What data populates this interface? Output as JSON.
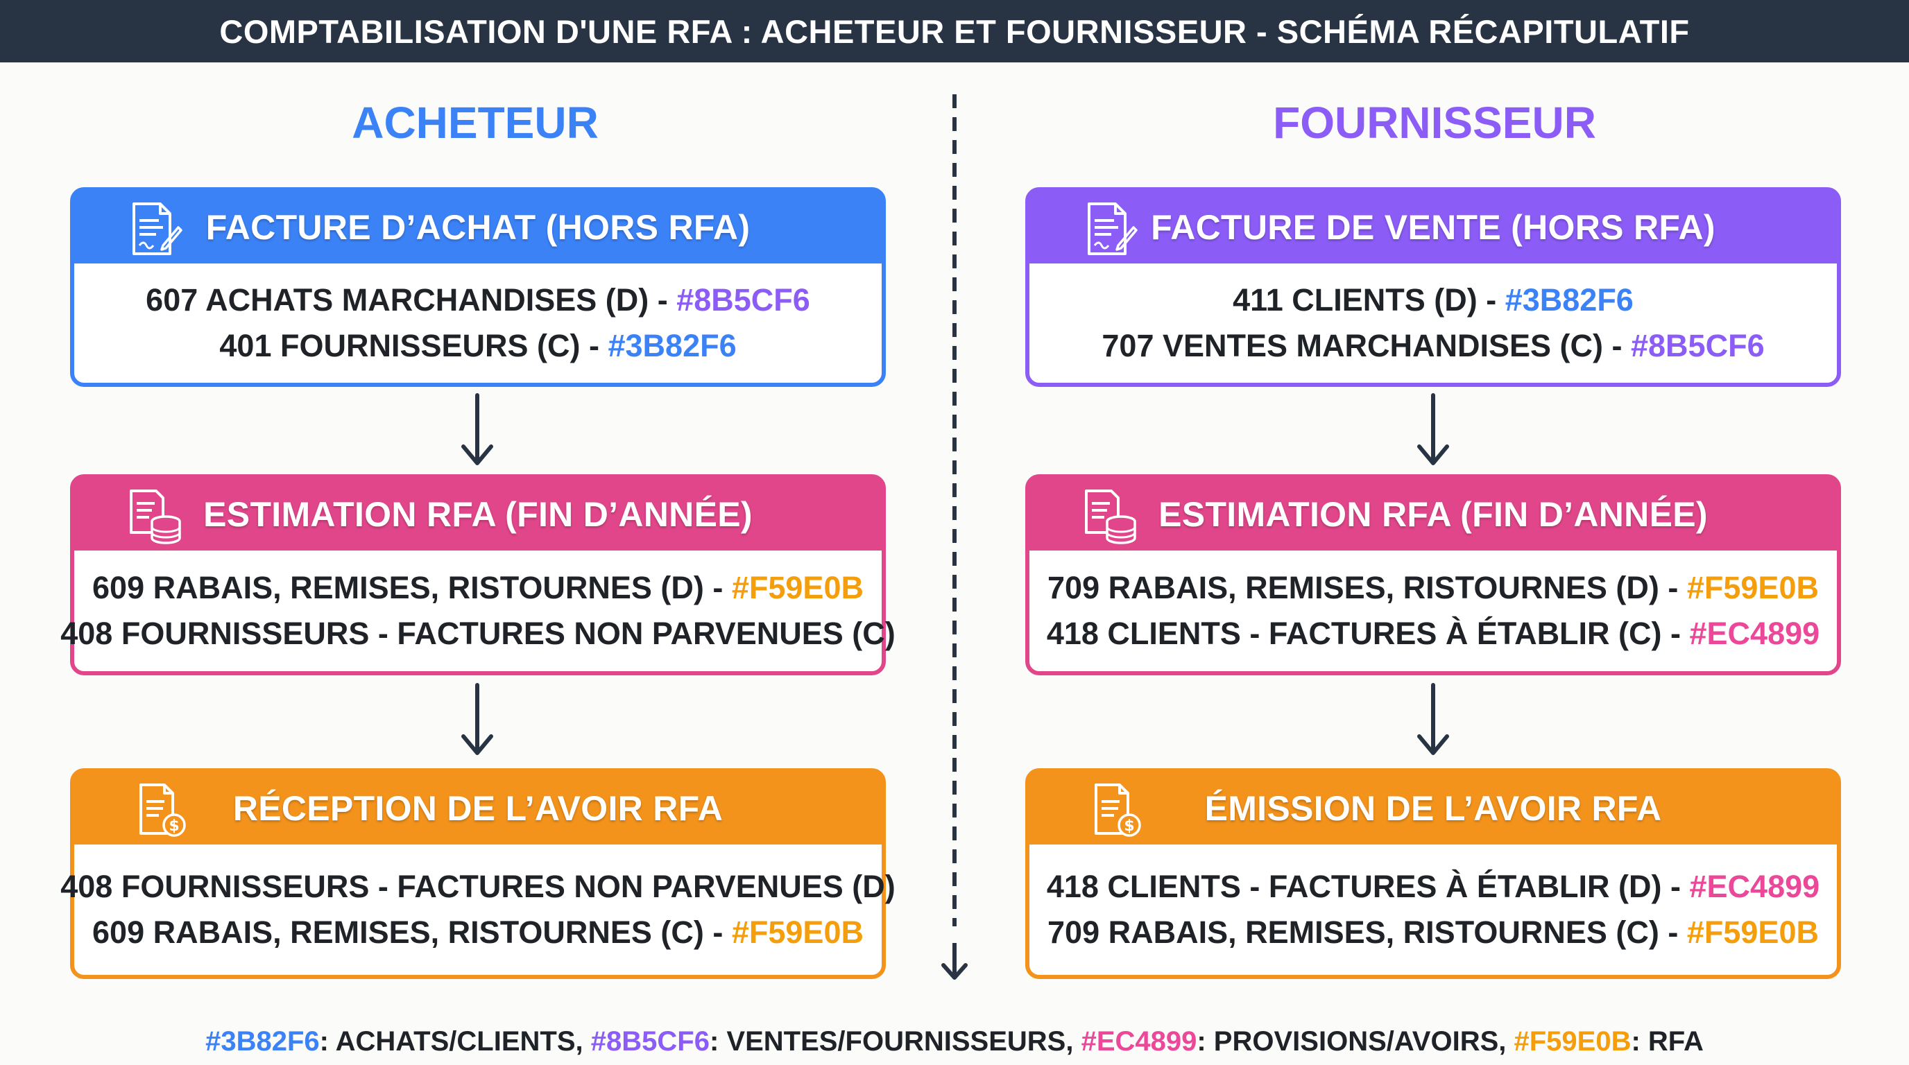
{
  "header": {
    "title": "COMPTABILISATION D'UNE RFA : ACHETEUR ET FOURNISSEUR - SCHÉMA RÉCAPITULATIF"
  },
  "columns": {
    "buyer": {
      "title": "ACHETEUR",
      "cards": [
        {
          "title": "FACTURE D’ACHAT (HORS RFA)",
          "icon": "invoice-icon",
          "lines": [
            {
              "text": "607 ACHATS MARCHANDISES (D) - ",
              "code": "#8B5CF6"
            },
            {
              "text": "401 FOURNISSEURS (C) - ",
              "code": "#3B82F6"
            }
          ]
        },
        {
          "title": "ESTIMATION RFA (FIN D’ANNÉE)",
          "icon": "ledger-coins-icon",
          "lines": [
            {
              "text": "609 RABAIS, REMISES, RISTOURNES (D) - ",
              "code": "#F59E0B"
            },
            {
              "text": "408 FOURNISSEURS - FACTURES NON PARVENUES (C)",
              "code": ""
            }
          ]
        },
        {
          "title": "RÉCEPTION DE L’AVOIR RFA",
          "icon": "credit-note-icon",
          "lines": [
            {
              "text": "408 FOURNISSEURS - FACTURES NON PARVENUES (D)",
              "code": ""
            },
            {
              "text": "609 RABAIS, REMISES, RISTOURNES (C) - ",
              "code": "#F59E0B"
            }
          ]
        }
      ]
    },
    "supplier": {
      "title": "FOURNISSEUR",
      "cards": [
        {
          "title": "FACTURE DE VENTE (HORS RFA)",
          "icon": "invoice-icon",
          "lines": [
            {
              "text": "411 CLIENTS (D) - ",
              "code": "#3B82F6"
            },
            {
              "text": "707 VENTES MARCHANDISES (C) - ",
              "code": "#8B5CF6"
            }
          ]
        },
        {
          "title": "ESTIMATION RFA (FIN D’ANNÉE)",
          "icon": "ledger-coins-icon",
          "lines": [
            {
              "text": "709 RABAIS, REMISES, RISTOURNES (D) - ",
              "code": "#F59E0B"
            },
            {
              "text": "418 CLIENTS - FACTURES À ÉTABLIR (C) - ",
              "code": "#EC4899"
            }
          ]
        },
        {
          "title": "ÉMISSION DE L’AVOIR RFA",
          "icon": "credit-note-icon",
          "lines": [
            {
              "text": "418 CLIENTS - FACTURES À ÉTABLIR (D) - ",
              "code": "#EC4899"
            },
            {
              "text": "709 RABAIS, REMISES, RISTOURNES (C) - ",
              "code": "#F59E0B"
            }
          ]
        }
      ]
    }
  },
  "legend": [
    {
      "code": "#3B82F6",
      "label": ": ACHATS/CLIENTS, "
    },
    {
      "code": "#8B5CF6",
      "label": ": VENTES/FOURNISSEURS, "
    },
    {
      "code": "#EC4899",
      "label": ": PROVISIONS/AVOIRS, "
    },
    {
      "code": "#F59E0B",
      "label": ": RFA"
    }
  ],
  "colors": {
    "header_bg": "#283444",
    "blue": "#3B82F6",
    "purple": "#8B5CF6",
    "pink": "#EC4899",
    "orange": "#F59E0B"
  }
}
